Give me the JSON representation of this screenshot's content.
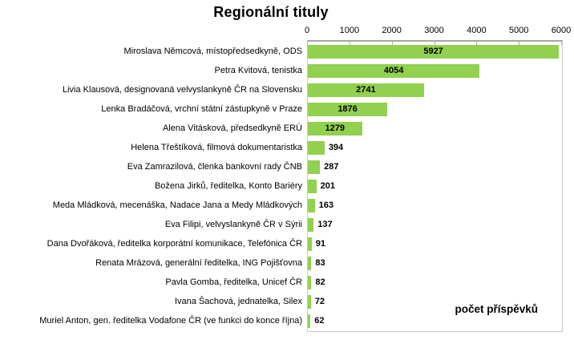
{
  "chart_data": {
    "type": "bar",
    "orientation": "horizontal",
    "title": "Regionální tituly",
    "value_axis_label": "počet příspěvků",
    "axis_ticks": [
      0,
      1000,
      2000,
      3000,
      4000,
      5000,
      6000
    ],
    "xlim": [
      0,
      6000
    ],
    "grid": false,
    "legend": false,
    "bar_color": "#92D050",
    "axis_line_color": "#a6a6a6",
    "border_color": "#c9c9c9",
    "inside_label_threshold": 1000,
    "categories": [
      "Miroslava Němcová, místopředsedkyně, ODS",
      "Petra Kvitová, tenistka",
      "Livia Klausová, designovaná velvyslankyně ČR na Slovensku",
      "Lenka Bradáčová, vrchní státní zástupkyně v Praze",
      "Alena Vitásková, předsedkyně ERÚ",
      "Helena Třeštíková, filmová dokumentaristka",
      "Eva Zamrazilová, členka bankovní rady ČNB",
      "Božena Jirků, ředitelka, Konto Bariéry",
      "Meda Mládková, mecenáška, Nadace Jana a Medy Mládkových",
      "Eva Filipi, velvyslankyně ČR v Sýrii",
      "Dana Dvořáková, ředitelka korporátní komunikace, Telefónica ČR",
      "Renata Mrázová, generální ředitelka, ING Pojišťovna",
      "Pavla Gomba, ředitelka, Unicef ČR",
      "Ivana Šachová, jednatelka, Silex",
      "Muriel Anton, gen. ředitelka Vodafone ČR (ve funkci do konce října)"
    ],
    "values": [
      5927,
      4054,
      2741,
      1876,
      1279,
      394,
      287,
      201,
      163,
      137,
      91,
      83,
      82,
      72,
      62
    ]
  }
}
